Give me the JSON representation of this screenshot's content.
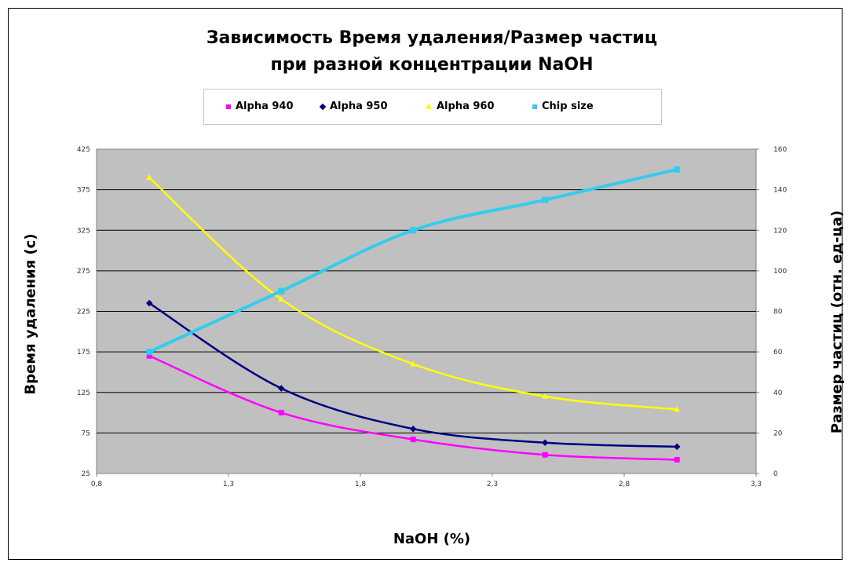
{
  "chart_data": {
    "type": "line",
    "title_lines": [
      "Зависимость Время удаления/Размер частиц",
      "при разной концентрации NaOH"
    ],
    "xlabel": "NaOH (%)",
    "ylabel_left": "Время удаления (с)",
    "ylabel_right": "Размер частиц (отн. ед-ца)",
    "xlim": [
      0.8,
      3.3
    ],
    "xticks": [
      "0,8",
      "1,3",
      "1,8",
      "2,3",
      "2,8",
      "3,3"
    ],
    "ylim_left": [
      25,
      425
    ],
    "yticks_left": [
      "25",
      "75",
      "125",
      "175",
      "225",
      "275",
      "325",
      "375",
      "425"
    ],
    "ylim_right": [
      0,
      160
    ],
    "yticks_right": [
      "0",
      "20",
      "40",
      "60",
      "80",
      "100",
      "120",
      "140",
      "160"
    ],
    "grid": true,
    "plot_background": "#c0c0c0",
    "legend_position": "top",
    "x": [
      1.0,
      1.5,
      2.0,
      2.5,
      3.0
    ],
    "series": [
      {
        "name": "Alpha 940",
        "axis": "left",
        "marker": "square",
        "color": "#ff00ff",
        "values": [
          170,
          100,
          67,
          48,
          42
        ]
      },
      {
        "name": "Alpha 950",
        "axis": "left",
        "marker": "diamond",
        "color": "#000080",
        "values": [
          235,
          130,
          80,
          63,
          58
        ]
      },
      {
        "name": "Alpha 960",
        "axis": "left",
        "marker": "triangle",
        "color": "#ffff00",
        "values": [
          390,
          240,
          160,
          120,
          104
        ]
      },
      {
        "name": "Chip size",
        "axis": "right",
        "marker": "square",
        "color": "#33ccee",
        "values": [
          60,
          90,
          120,
          135,
          150
        ]
      }
    ]
  }
}
